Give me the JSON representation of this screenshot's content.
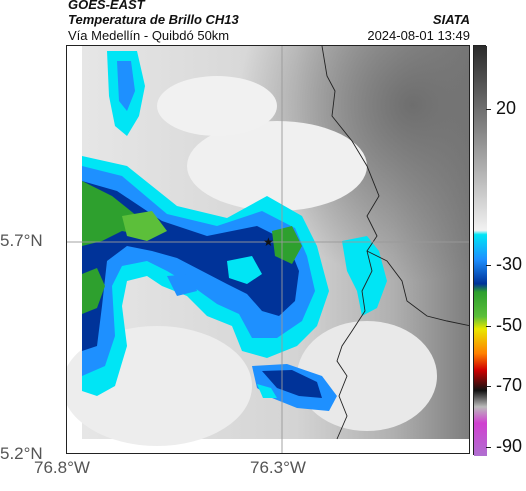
{
  "header": {
    "satellite": "GOES-EAST",
    "product": "Temperatura de Brillo CH13",
    "organization": "SIATA",
    "subtitle": "Vía Medellín - Quibdó 50km",
    "timestamp": "2024-08-01 13:49"
  },
  "map": {
    "lat_ticks": [
      "5.7°N",
      "5.2°N"
    ],
    "lon_ticks": [
      "76.8°W",
      "76.3°W"
    ],
    "marker": "star-marker"
  },
  "colorbar": {
    "ticks": [
      "20",
      "-30",
      "-50",
      "-70",
      "-90"
    ],
    "colors": {
      "warm_gray_dark": "#2b2b2b",
      "warm_gray_light": "#f2f2f2",
      "cyan": "#00e5f5",
      "light_blue": "#1e90ff",
      "dark_blue": "#003399",
      "green": "#2ea02e",
      "yellow": "#e8e800",
      "orange": "#ff8000",
      "red": "#d00000",
      "black": "#111111",
      "magenta": "#d040d0"
    }
  }
}
